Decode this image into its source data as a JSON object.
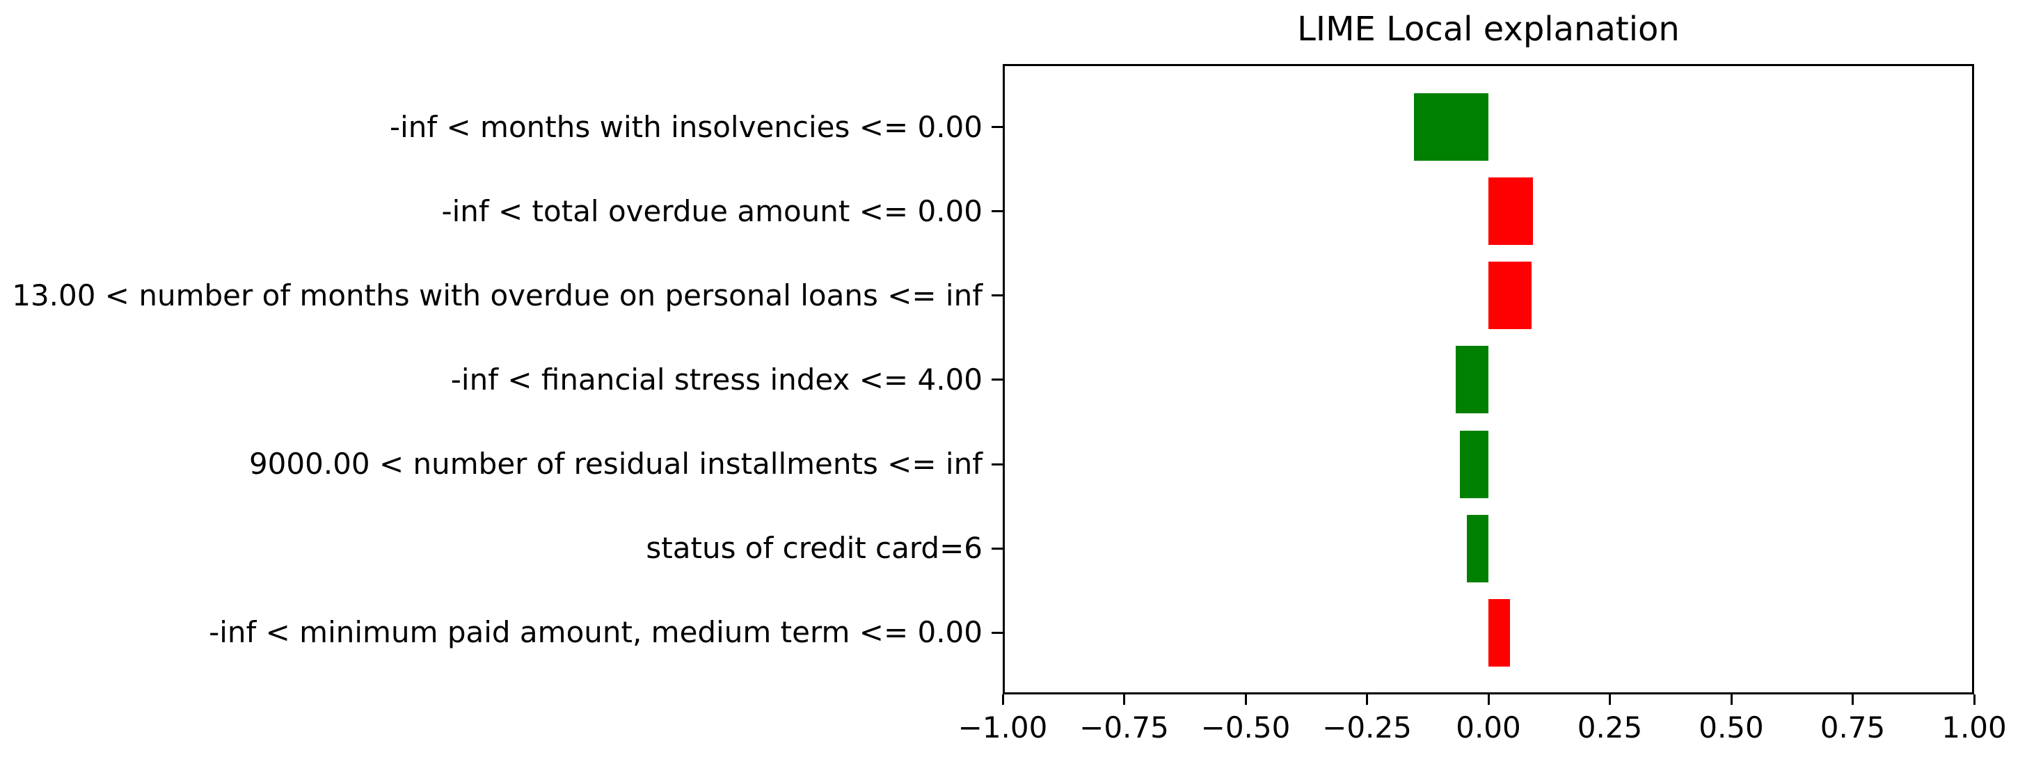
{
  "chart_data": {
    "type": "bar",
    "orientation": "horizontal",
    "title": "LIME Local explanation",
    "categories": [
      "-inf < months with insolvencies <= 0.00",
      "-inf < total overdue amount <= 0.00",
      "13.00 < number of months with overdue on personal loans <= inf",
      "-inf < financial stress index <= 4.00",
      "9000.00 < number of residual installments <= inf",
      "status of credit card=6",
      "-inf < minimum paid amount, medium term <= 0.00"
    ],
    "values": [
      -0.153,
      0.092,
      0.089,
      -0.067,
      -0.059,
      -0.044,
      0.044
    ],
    "colors": {
      "positive": "#ff0000",
      "negative": "#008000",
      "axis": "#000000",
      "background": "#ffffff"
    },
    "xlim": [
      -1.0,
      1.0
    ],
    "x_ticks": [
      -1.0,
      -0.75,
      -0.5,
      -0.25,
      0.0,
      0.25,
      0.5,
      0.75,
      1.0
    ],
    "x_tick_labels": [
      "−1.00",
      "−0.75",
      "−0.50",
      "−0.25",
      "0.00",
      "0.25",
      "0.50",
      "0.75",
      "1.00"
    ],
    "xlabel": "",
    "ylabel": "",
    "grid": false,
    "legend": null
  }
}
